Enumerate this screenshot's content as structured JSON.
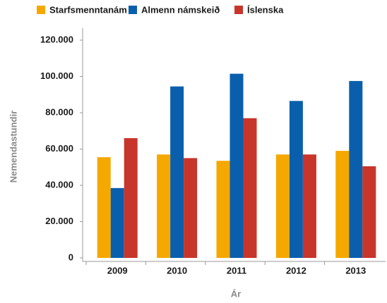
{
  "chart_data": {
    "type": "bar",
    "categories": [
      "2009",
      "2010",
      "2011",
      "2012",
      "2013"
    ],
    "series": [
      {
        "name": "Starfsmenntanám",
        "color": "#f5a800",
        "values": [
          55500,
          57000,
          53500,
          57000,
          59000
        ]
      },
      {
        "name": "Almenn námskeið",
        "color": "#0a5fad",
        "values": [
          38500,
          94500,
          101500,
          86500,
          97500
        ]
      },
      {
        "name": "Íslenska",
        "color": "#c8352a",
        "values": [
          66000,
          55000,
          77000,
          57000,
          50500
        ]
      }
    ],
    "x_label": "Ár",
    "y_label": "Nemendastundir",
    "ylim": [
      0,
      120000
    ],
    "yticks": [
      0,
      {
        "value": 20000,
        "label": "20.000"
      },
      {
        "value": 40000,
        "label": "40.000"
      },
      {
        "value": 60000,
        "label": "60.000"
      },
      {
        "value": 80000,
        "label": "80.000"
      },
      {
        "value": 100000,
        "label": "100.000"
      },
      {
        "value": 120000,
        "label": "120.000"
      }
    ],
    "grid": false,
    "legend": "top"
  }
}
